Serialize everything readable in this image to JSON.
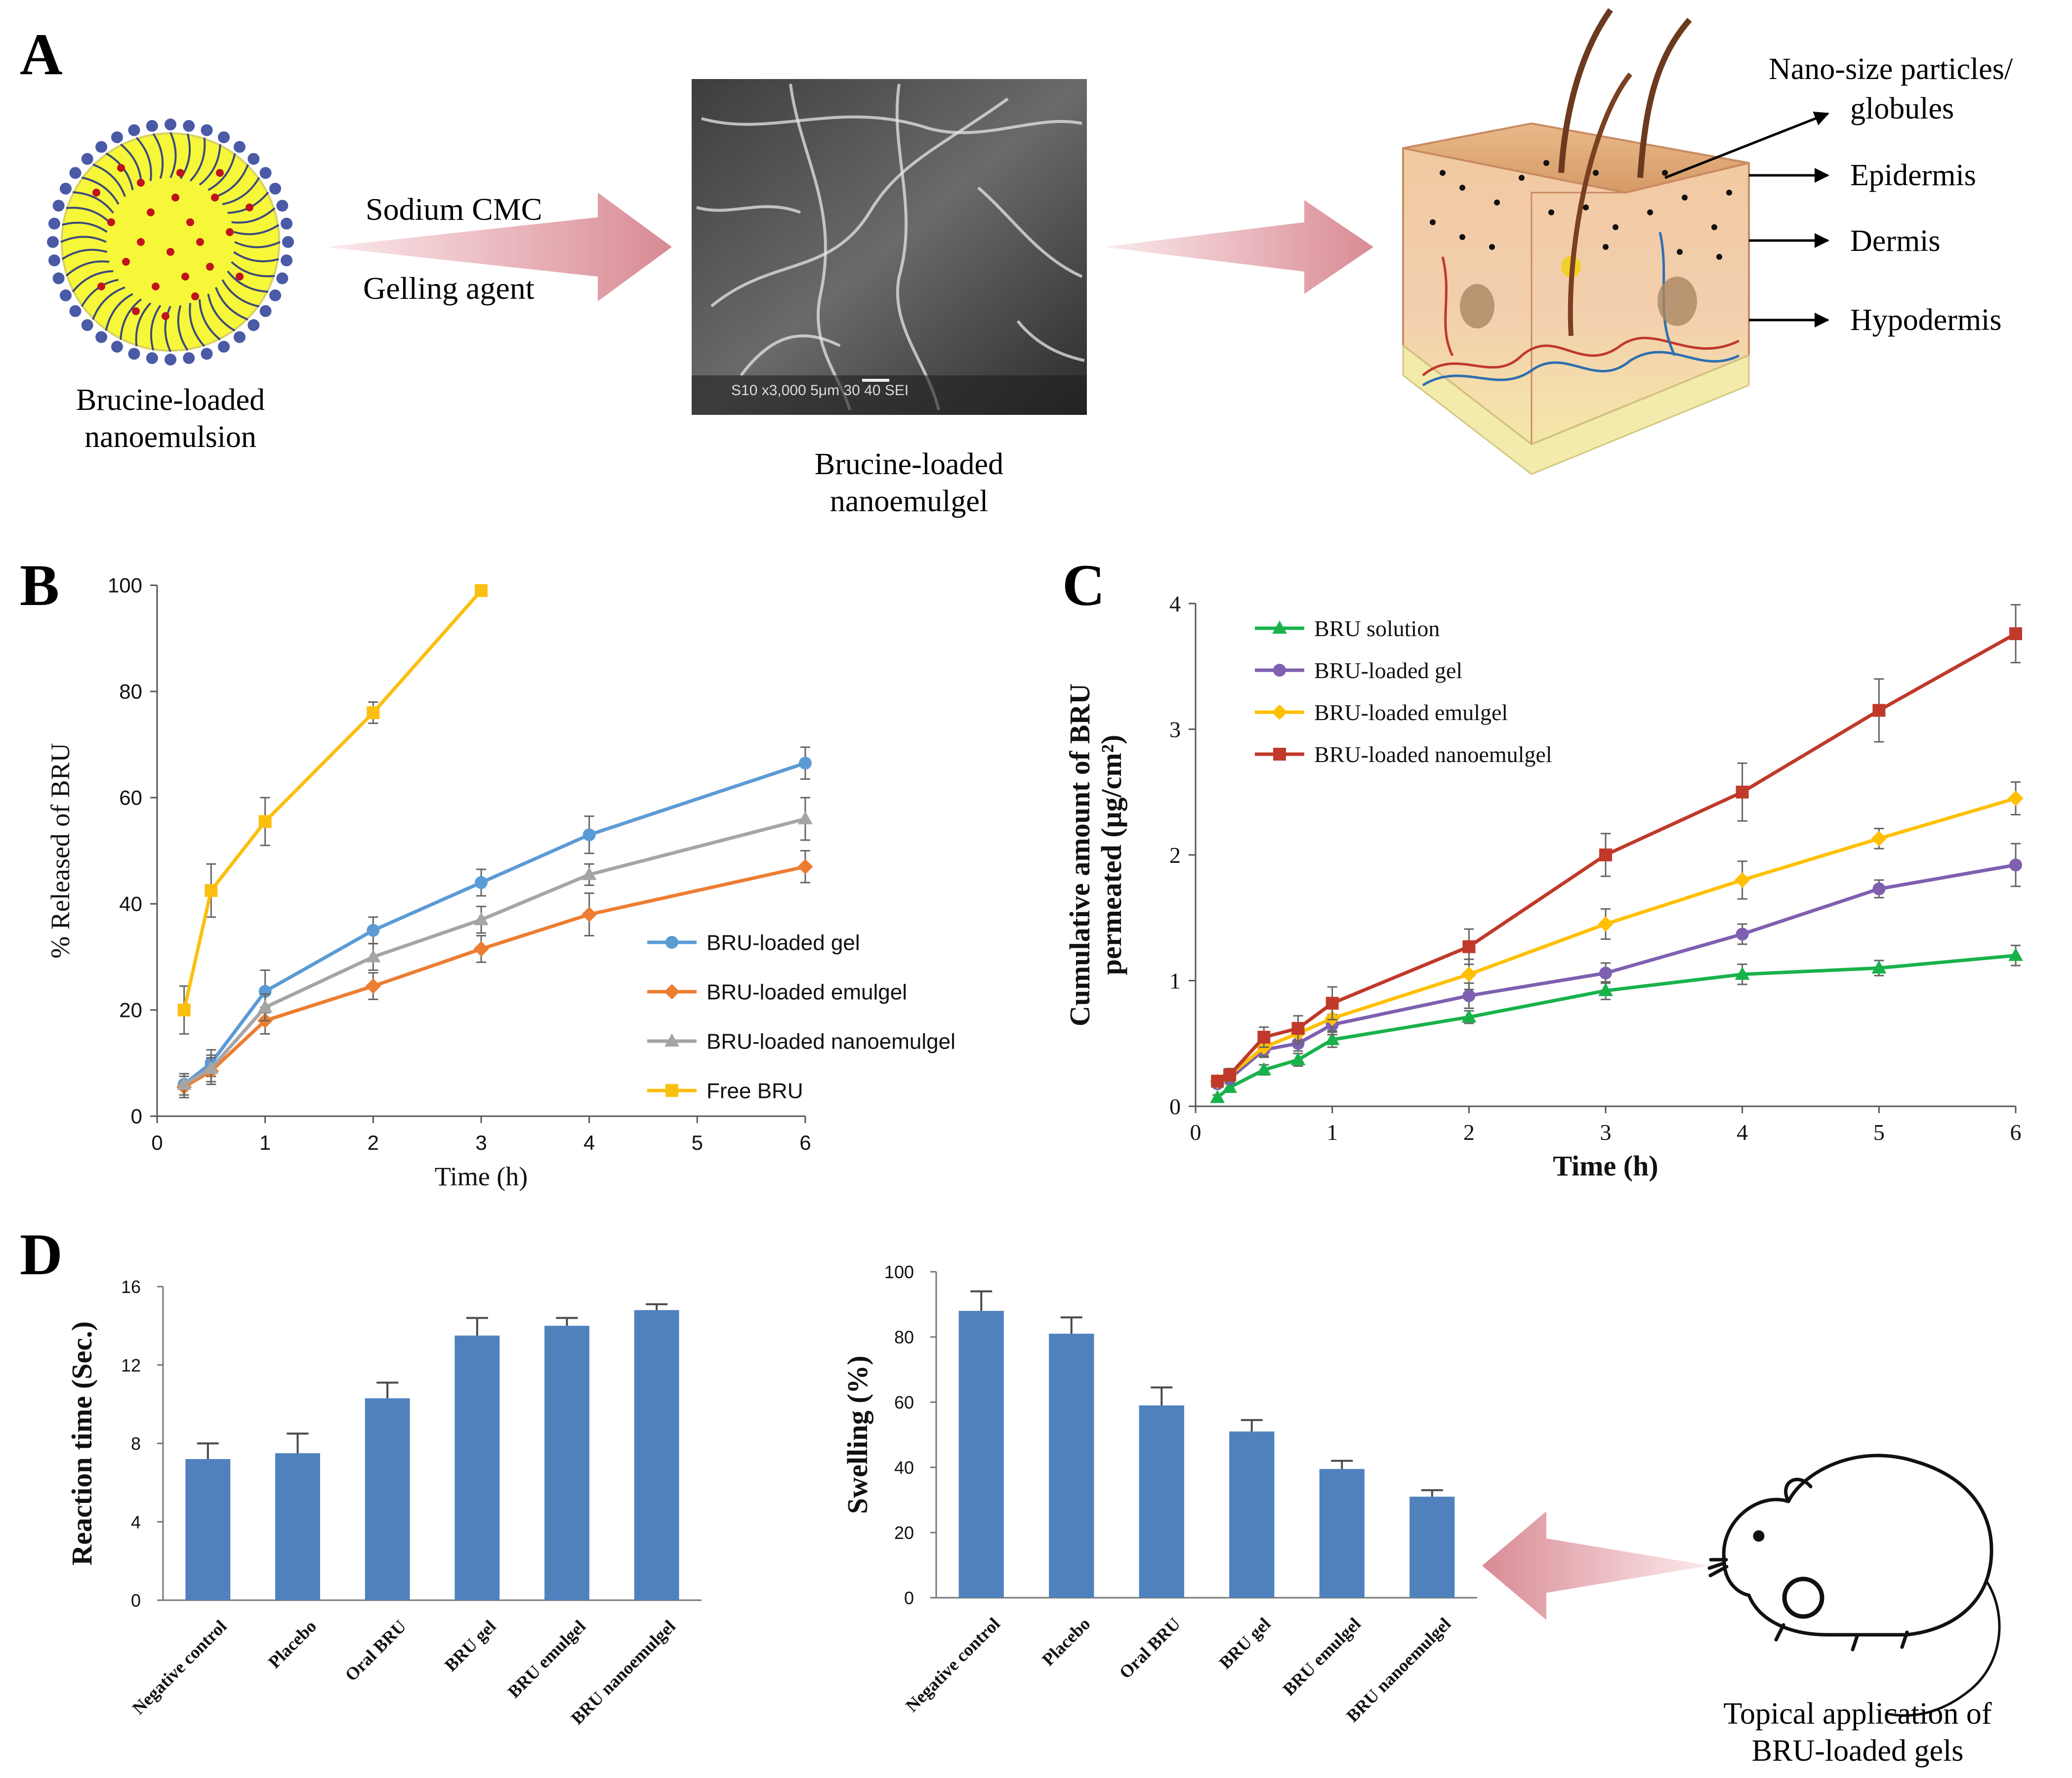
{
  "panels": {
    "A": {
      "label": "A",
      "nanoemulsion_caption": [
        "Brucine-loaded",
        "nanoemulsion"
      ],
      "gel_agents": [
        "Sodium CMC",
        "Gelling agent"
      ],
      "sem_caption": [
        "Brucine-loaded",
        "nanoemulgel"
      ],
      "sem_scale_text": "S10   x3,000   5μm   30 40 SEI",
      "skin_labels": [
        "Nano-size particles/",
        "globules",
        "Epidermis",
        "Dermis",
        "Hypodermis"
      ]
    },
    "D": {
      "label": "D",
      "mouse_caption": [
        "Topical application of",
        "BRU-loaded gels"
      ]
    }
  },
  "colors": {
    "blue": "#5b9bd5",
    "orange": "#ed7d31",
    "gray": "#a5a5a5",
    "yellow": "#fbbf0f",
    "teal": "#21b7a6",
    "green": "#18b24b",
    "purple": "#7e5fb0",
    "gold": "#ffc000",
    "red": "#c0392b",
    "bar_blue": "#4f81bd",
    "sphere_yellow": "#f7f73a",
    "sphere_dot": "#c0141c",
    "head_blue": "#4a5aa6",
    "arrow_pink": "#dc8f98"
  },
  "chart_data": [
    {
      "id": "B",
      "label": "B",
      "type": "line",
      "xlabel": "Time (h)",
      "ylabel": "% Released of BRU",
      "xlim": [
        0,
        6
      ],
      "ylim": [
        0,
        100
      ],
      "xticks": [
        0,
        1,
        2,
        3,
        4,
        5,
        6
      ],
      "yticks": [
        0,
        20,
        40,
        60,
        80,
        100
      ],
      "legend_position": "right",
      "series": [
        {
          "name": "BRU-loaded gel",
          "color": "#5b9bd5",
          "marker": "circle",
          "x": [
            0.25,
            0.5,
            1,
            2,
            3,
            4,
            6
          ],
          "y": [
            6,
            10,
            23.5,
            35,
            44,
            53,
            66.5
          ],
          "err": [
            2,
            2.5,
            4,
            2.5,
            2.5,
            3.5,
            3
          ]
        },
        {
          "name": "BRU-loaded emulgel",
          "color": "#ed7d31",
          "marker": "diamond",
          "x": [
            0.25,
            0.5,
            1,
            2,
            3,
            4,
            6
          ],
          "y": [
            5.5,
            8.5,
            18,
            24.5,
            31.5,
            38,
            47
          ],
          "err": [
            2,
            2.5,
            2.5,
            2.5,
            2.5,
            4,
            3
          ]
        },
        {
          "name": "BRU-loaded nanoemulgel",
          "color": "#a5a5a5",
          "marker": "triangle",
          "x": [
            0.25,
            0.5,
            1,
            2,
            3,
            4,
            6
          ],
          "y": [
            6,
            9,
            20.5,
            30,
            37,
            45.5,
            56
          ],
          "err": [
            2,
            2.5,
            2.5,
            2.5,
            2.5,
            2,
            4
          ]
        },
        {
          "name": "Free BRU",
          "color": "#fbbf0f",
          "marker": "square",
          "x": [
            0.25,
            0.5,
            1,
            2,
            3
          ],
          "y": [
            20,
            42.5,
            55.5,
            76,
            99
          ],
          "err": [
            4.5,
            5,
            4.5,
            2,
            0.5
          ]
        }
      ]
    },
    {
      "id": "C",
      "label": "C",
      "type": "line",
      "xlabel": "Time (h)",
      "ylabel": [
        "Cumulative amount of BRU",
        "permeated (μg/cm²)"
      ],
      "xlim": [
        0,
        6
      ],
      "ylim": [
        0,
        4
      ],
      "xticks": [
        0,
        1,
        2,
        3,
        4,
        5,
        6
      ],
      "yticks": [
        0,
        1,
        2,
        3,
        4
      ],
      "legend_position": "top-left",
      "series": [
        {
          "name": "BRU solution",
          "color": "#21b7a6",
          "marker_color": "#18b24b",
          "line_color": "#18b24b",
          "marker": "triangle",
          "x": [
            0.16,
            0.25,
            0.5,
            0.75,
            1,
            2,
            3,
            4,
            5,
            6
          ],
          "y": [
            0.07,
            0.15,
            0.29,
            0.37,
            0.53,
            0.71,
            0.92,
            1.05,
            1.1,
            1.2
          ],
          "err": [
            0.02,
            0.03,
            0.04,
            0.05,
            0.06,
            0.05,
            0.07,
            0.08,
            0.06,
            0.08
          ]
        },
        {
          "name": "BRU-loaded gel",
          "color": "#7e5fb0",
          "marker": "circle",
          "x": [
            0.16,
            0.25,
            0.5,
            0.75,
            1,
            2,
            3,
            4,
            5,
            6
          ],
          "y": [
            0.18,
            0.22,
            0.45,
            0.5,
            0.65,
            0.88,
            1.06,
            1.37,
            1.73,
            1.92
          ],
          "err": [
            0.03,
            0.04,
            0.06,
            0.06,
            0.08,
            0.1,
            0.08,
            0.08,
            0.07,
            0.17
          ]
        },
        {
          "name": "BRU-loaded emulgel",
          "color": "#ffc000",
          "marker": "diamond",
          "x": [
            0.16,
            0.25,
            0.5,
            0.75,
            1,
            2,
            3,
            4,
            5,
            6
          ],
          "y": [
            0.2,
            0.25,
            0.47,
            0.58,
            0.7,
            1.05,
            1.45,
            1.8,
            2.13,
            2.45
          ],
          "err": [
            0.04,
            0.05,
            0.07,
            0.08,
            0.1,
            0.12,
            0.12,
            0.15,
            0.08,
            0.13
          ]
        },
        {
          "name": "BRU-loaded nanoemulgel",
          "color": "#c0392b",
          "marker": "square",
          "x": [
            0.16,
            0.25,
            0.5,
            0.75,
            1,
            2,
            3,
            4,
            5,
            6
          ],
          "y": [
            0.2,
            0.25,
            0.55,
            0.62,
            0.82,
            1.27,
            2.0,
            2.5,
            3.15,
            3.76
          ],
          "err": [
            0.04,
            0.05,
            0.08,
            0.1,
            0.13,
            0.14,
            0.17,
            0.23,
            0.25,
            0.23
          ]
        }
      ]
    },
    {
      "id": "D1",
      "label": "",
      "type": "bar",
      "xlabel": "",
      "ylabel": "Reaction time (Sec.)",
      "ylim": [
        0,
        16
      ],
      "yticks": [
        0,
        4,
        8,
        12,
        16
      ],
      "categories": [
        "Negative control",
        "Placebo",
        "Oral BRU",
        "BRU gel",
        "BRU emulgel",
        "BRU nanoemulgel"
      ],
      "values": [
        7.2,
        7.5,
        10.3,
        13.5,
        14.0,
        14.8
      ],
      "err": [
        0.8,
        1.0,
        0.8,
        0.9,
        0.4,
        0.3
      ]
    },
    {
      "id": "D2",
      "label": "",
      "type": "bar",
      "xlabel": "",
      "ylabel": "Swelling  (%)",
      "ylim": [
        0,
        100
      ],
      "yticks": [
        0,
        20,
        40,
        60,
        80,
        100
      ],
      "categories": [
        "Negative control",
        "Placebo",
        "Oral BRU",
        "BRU gel",
        "BRU emulgel",
        "BRU nanoemulgel"
      ],
      "values": [
        88,
        81,
        59,
        51,
        39.5,
        31
      ],
      "err": [
        6,
        5,
        5.5,
        3.5,
        2.5,
        2
      ]
    }
  ]
}
